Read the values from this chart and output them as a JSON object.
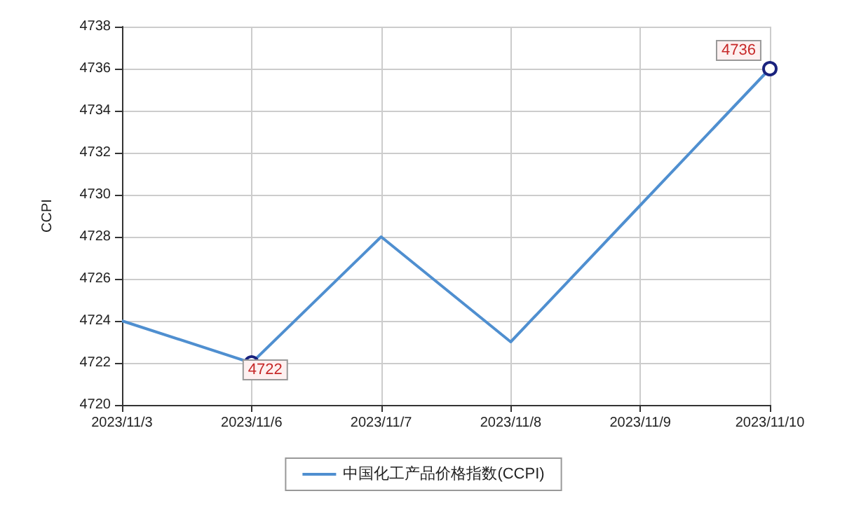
{
  "chart_data": {
    "type": "line",
    "ylabel": "CCPI",
    "categories": [
      "2023/11/3",
      "2023/11/6",
      "2023/11/7",
      "2023/11/8",
      "2023/11/9",
      "2023/11/10"
    ],
    "series": [
      {
        "name": "中国化工产品价格指数(CCPI)",
        "color": "#4f8fd0",
        "values": [
          4724,
          4722,
          4728,
          4723,
          4729.5,
          4736
        ],
        "value_labels": [
          null,
          "4722",
          null,
          null,
          null,
          "4736"
        ]
      }
    ],
    "ylim": [
      4720,
      4738
    ],
    "yticks": [
      4720,
      4722,
      4724,
      4726,
      4728,
      4730,
      4732,
      4734,
      4736,
      4738
    ],
    "grid": true,
    "legend": "bottom"
  }
}
